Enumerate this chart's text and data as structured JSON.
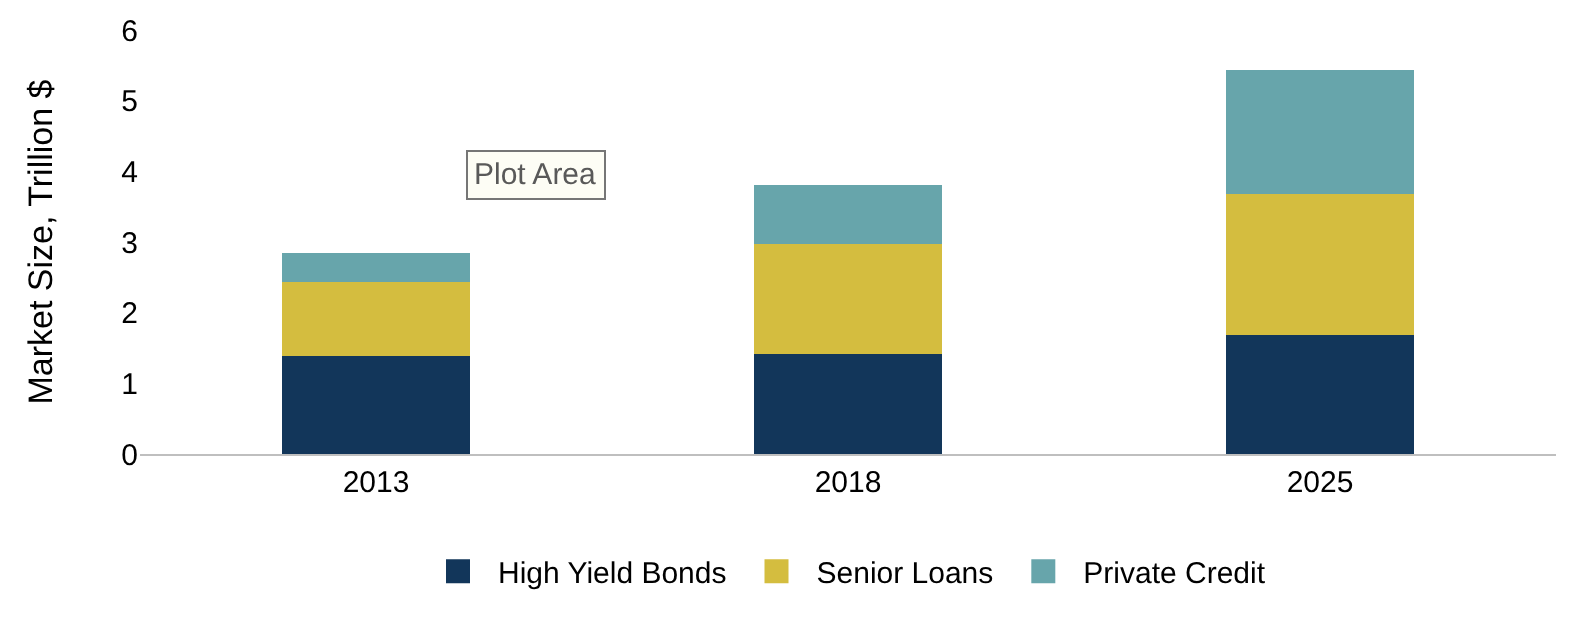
{
  "chart_data": {
    "type": "bar",
    "stacked": true,
    "ylabel": "Market Size, Trillion $",
    "categories": [
      "2013",
      "2018",
      "2025"
    ],
    "series": [
      {
        "name": "High Yield Bonds",
        "color": "#12365a",
        "values": [
          1.39,
          1.42,
          1.69
        ]
      },
      {
        "name": "Senior Loans",
        "color": "#d4bd3f",
        "values": [
          1.04,
          1.55,
          1.99
        ]
      },
      {
        "name": "Private Credit",
        "color": "#67a5ab",
        "values": [
          0.42,
          0.83,
          1.75
        ]
      }
    ],
    "ylim": [
      0,
      6
    ],
    "yticks": [
      0,
      1,
      2,
      3,
      4,
      5,
      6
    ],
    "grid": false,
    "legend": "bottom",
    "annotations": [
      "Plot Area"
    ]
  }
}
